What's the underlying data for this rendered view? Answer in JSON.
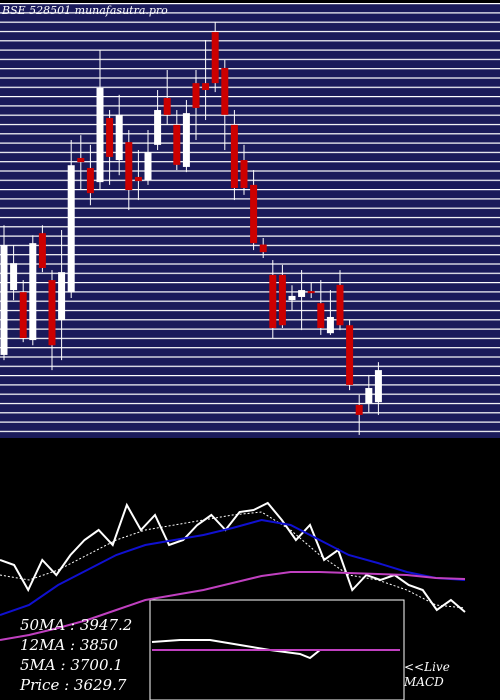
{
  "chart_data": {
    "type": "candlestick",
    "title": "BSE 528501 munafasutra.pro",
    "ylim": [
      3448,
      4715
    ],
    "up_color": "#ffffff",
    "down_color": "#cc0000",
    "open": [
      3686,
      3874,
      3868,
      3729,
      4039,
      3903,
      3787,
      3868,
      4257,
      4228,
      4187,
      4373,
      4251,
      4303,
      4202,
      4193,
      4295,
      4431,
      4353,
      4231,
      4474,
      4474,
      4622,
      4518,
      4353,
      4251,
      4179,
      4006,
      3918,
      3918,
      3845,
      3854,
      3871,
      3836,
      3749,
      3889,
      3772,
      3541,
      3546,
      3549
    ],
    "high": [
      4062,
      4004,
      3903,
      4033,
      4062,
      3932,
      4048,
      4309,
      4323,
      4295,
      4570,
      4396,
      4440,
      4338,
      4280,
      4338,
      4454,
      4512,
      4396,
      4425,
      4512,
      4599,
      4651,
      4541,
      4396,
      4295,
      4222,
      4025,
      3961,
      3947,
      3888,
      3932,
      3897,
      3903,
      3874,
      3932,
      3787,
      3570,
      3628,
      3665
    ],
    "low": [
      3671,
      3845,
      3723,
      3714,
      3926,
      3642,
      3671,
      3851,
      4164,
      4120,
      4164,
      4179,
      4207,
      4106,
      4135,
      4179,
      4280,
      4353,
      4222,
      4216,
      4309,
      4367,
      4448,
      4280,
      4135,
      4150,
      3990,
      3967,
      3735,
      3764,
      3816,
      3758,
      3851,
      3744,
      3744,
      3758,
      3584,
      3454,
      3520,
      3512
    ],
    "close": [
      4004,
      3952,
      3735,
      4010,
      3938,
      3714,
      3926,
      4236,
      4245,
      4155,
      4460,
      4260,
      4382,
      4164,
      4190,
      4274,
      4396,
      4382,
      4237,
      4387,
      4402,
      4454,
      4474,
      4382,
      4170,
      4170,
      4010,
      3984,
      3764,
      3772,
      3857,
      3874,
      3865,
      3764,
      3796,
      3772,
      3599,
      3512,
      3590,
      3642
    ],
    "indicator": {
      "ylim": [
        0,
        200
      ],
      "series": [
        {
          "name": "Price",
          "color": "#ffffff",
          "values": [
            140,
            135,
            110,
            140,
            125,
            145,
            160,
            170,
            155,
            195,
            170,
            185,
            155,
            160,
            175,
            185,
            170,
            188,
            190,
            197,
            180,
            160,
            175,
            140,
            150,
            110,
            125,
            120,
            125,
            115,
            110,
            90,
            100,
            88
          ]
        },
        {
          "name": "5MA",
          "color": "#ffffff",
          "dashed": true,
          "values": [
            125,
            120,
            130,
            145,
            160,
            170,
            175,
            180,
            185,
            188,
            170,
            145,
            125,
            120,
            110,
            95,
            92
          ]
        },
        {
          "name": "12MA",
          "color": "#1010d0",
          "values": [
            85,
            95,
            115,
            130,
            145,
            155,
            160,
            165,
            172,
            180,
            175,
            160,
            145,
            137,
            128,
            122,
            120
          ]
        },
        {
          "name": "50MA",
          "color": "#c040c0",
          "values": [
            60,
            65,
            72,
            80,
            90,
            100,
            105,
            110,
            117,
            124,
            128,
            128,
            127,
            126,
            125,
            122,
            121
          ]
        }
      ]
    },
    "legend_texts": [
      "50MA : 3947.2",
      "12MA : 3850",
      "5MA : 3700.1",
      "Price   : 3629.7"
    ],
    "macd_label": [
      "<<Live",
      "MACD"
    ]
  }
}
